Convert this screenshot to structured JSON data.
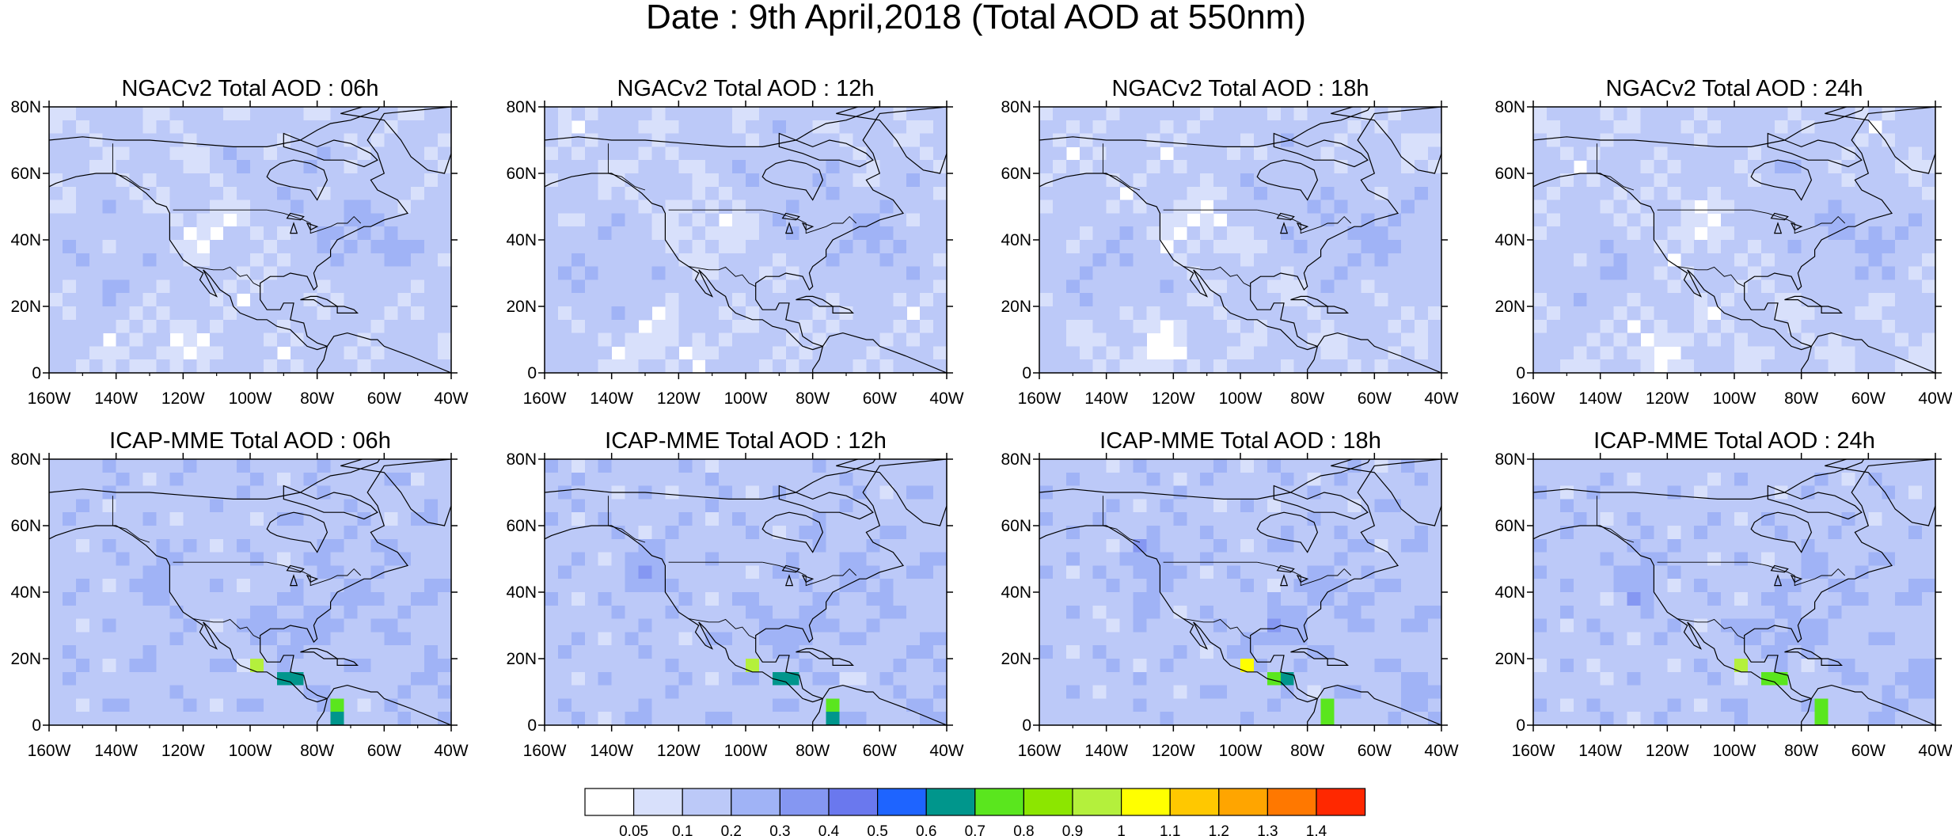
{
  "title": "Date : 9th April,2018 (Total AOD at 550nm)",
  "chart_data": [
    {
      "type": "heatmap",
      "title": "NGACv2 Total AOD : 06h",
      "model": "NGAC",
      "hour": 6
    },
    {
      "type": "heatmap",
      "title": "NGACv2 Total AOD : 12h",
      "model": "NGAC",
      "hour": 12
    },
    {
      "type": "heatmap",
      "title": "NGACv2 Total AOD : 18h",
      "model": "NGAC",
      "hour": 18
    },
    {
      "type": "heatmap",
      "title": "NGACv2 Total AOD : 24h",
      "model": "NGAC",
      "hour": 24
    },
    {
      "type": "heatmap",
      "title": "ICAP-MME Total AOD : 06h",
      "model": "ICAP",
      "hour": 6
    },
    {
      "type": "heatmap",
      "title": "ICAP-MME Total AOD : 12h",
      "model": "ICAP",
      "hour": 12
    },
    {
      "type": "heatmap",
      "title": "ICAP-MME Total AOD : 18h",
      "model": "ICAP",
      "hour": 18
    },
    {
      "type": "heatmap",
      "title": "ICAP-MME Total AOD : 24h",
      "model": "ICAP",
      "hour": 24
    }
  ],
  "axes": {
    "lon_range": [
      -160,
      -40
    ],
    "lat_range": [
      0,
      80
    ],
    "x_ticks": [
      "160W",
      "140W",
      "120W",
      "100W",
      "80W",
      "60W",
      "40W"
    ],
    "y_ticks": [
      "0",
      "20N",
      "40N",
      "60N",
      "80N"
    ]
  },
  "colorbar": {
    "labels": [
      "0.05",
      "0.1",
      "0.2",
      "0.3",
      "0.4",
      "0.5",
      "0.6",
      "0.7",
      "0.8",
      "0.9",
      "1",
      "1.1",
      "1.2",
      "1.3",
      "1.4"
    ],
    "colors": [
      "#ffffff",
      "#d8e0fb",
      "#bcc9f8",
      "#a0b3f6",
      "#8597f2",
      "#6a78ee",
      "#1e64ff",
      "#00968c",
      "#5ae61e",
      "#8ce600",
      "#b4f03c",
      "#ffff00",
      "#ffc800",
      "#ffa500",
      "#ff7800",
      "#ff2800"
    ]
  }
}
